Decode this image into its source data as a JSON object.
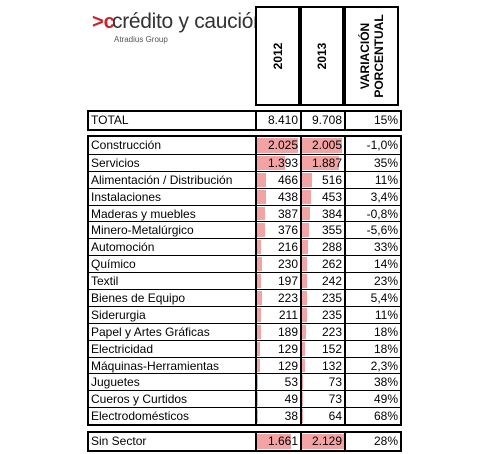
{
  "logo": {
    "mark": ">c",
    "brand": "crédito y caución",
    "sub": "Atradius Group"
  },
  "headers": {
    "year1": "2012",
    "year2": "2013",
    "variation_line1": "VARIACIÓN",
    "variation_line2": "PORCENTUAL"
  },
  "colors": {
    "bar": "#f3a3a3",
    "logo_accent": "#cc2229"
  },
  "chart_data": {
    "type": "table",
    "columns": [
      "2012",
      "2013",
      "VARIACIÓN PORCENTUAL"
    ],
    "bar_max": 2129,
    "total": {
      "label": "TOTAL",
      "v2012": "8.410",
      "v2013": "9.708",
      "var": "15%"
    },
    "sectors": [
      {
        "label": "Construcción",
        "v2012": "2.025",
        "v2013": "2.005",
        "var": "-1,0%",
        "n2012": 2025,
        "n2013": 2005
      },
      {
        "label": "Servicios",
        "v2012": "1.393",
        "v2013": "1.887",
        "var": "35%",
        "n2012": 1393,
        "n2013": 1887
      },
      {
        "label": "Alimentación / Distribución",
        "v2012": "466",
        "v2013": "516",
        "var": "11%",
        "n2012": 466,
        "n2013": 516
      },
      {
        "label": "Instalaciones",
        "v2012": "438",
        "v2013": "453",
        "var": "3,4%",
        "n2012": 438,
        "n2013": 453
      },
      {
        "label": "Maderas y muebles",
        "v2012": "387",
        "v2013": "384",
        "var": "-0,8%",
        "n2012": 387,
        "n2013": 384
      },
      {
        "label": "Minero-Metalúrgico",
        "v2012": "376",
        "v2013": "355",
        "var": "-5,6%",
        "n2012": 376,
        "n2013": 355
      },
      {
        "label": "Automoción",
        "v2012": "216",
        "v2013": "288",
        "var": "33%",
        "n2012": 216,
        "n2013": 288
      },
      {
        "label": "Químico",
        "v2012": "230",
        "v2013": "262",
        "var": "14%",
        "n2012": 230,
        "n2013": 262
      },
      {
        "label": "Textil",
        "v2012": "197",
        "v2013": "242",
        "var": "23%",
        "n2012": 197,
        "n2013": 242
      },
      {
        "label": "Bienes de Equipo",
        "v2012": "223",
        "v2013": "235",
        "var": "5,4%",
        "n2012": 223,
        "n2013": 235
      },
      {
        "label": "Siderurgia",
        "v2012": "211",
        "v2013": "235",
        "var": "11%",
        "n2012": 211,
        "n2013": 235
      },
      {
        "label": "Papel y Artes Gráficas",
        "v2012": "189",
        "v2013": "223",
        "var": "18%",
        "n2012": 189,
        "n2013": 223
      },
      {
        "label": "Electricidad",
        "v2012": "129",
        "v2013": "152",
        "var": "18%",
        "n2012": 129,
        "n2013": 152
      },
      {
        "label": "Máquinas-Herramientas",
        "v2012": "129",
        "v2013": "132",
        "var": "2,3%",
        "n2012": 129,
        "n2013": 132
      },
      {
        "label": "Juguetes",
        "v2012": "53",
        "v2013": "73",
        "var": "38%",
        "n2012": 53,
        "n2013": 73
      },
      {
        "label": "Cueros y Curtidos",
        "v2012": "49",
        "v2013": "73",
        "var": "49%",
        "n2012": 49,
        "n2013": 73
      },
      {
        "label": "Electrodomésticos",
        "v2012": "38",
        "v2013": "64",
        "var": "68%",
        "n2012": 38,
        "n2013": 64
      }
    ],
    "no_sector": {
      "label": "Sin Sector",
      "v2012": "1.661",
      "v2013": "2.129",
      "var": "28%",
      "n2012": 1661,
      "n2013": 2129
    }
  }
}
